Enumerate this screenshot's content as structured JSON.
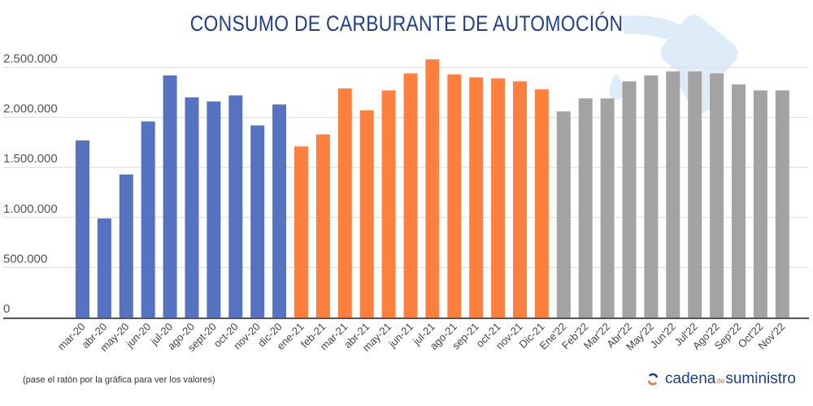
{
  "chart_data": {
    "type": "bar",
    "title": "CONSUMO DE CARBURANTE DE AUTOMOCIÓN",
    "xlabel": "",
    "ylabel": "",
    "ylim": [
      0,
      2500000
    ],
    "yticks": [
      0,
      500000,
      1000000,
      1500000,
      2000000,
      2500000
    ],
    "ytick_labels": [
      "0",
      "500.000",
      "1.000.000",
      "1.500.000",
      "2.000.000",
      "2.500.000"
    ],
    "grid": true,
    "categories": [
      "mar-20",
      "abr-20",
      "may-20",
      "jun-20",
      "jul-20",
      "ago-20",
      "sept-20",
      "oct-20",
      "nov-20",
      "dic-20",
      "ene-21",
      "feb-21",
      "mar-21",
      "abr-21",
      "may-21",
      "jun-21",
      "jul-21",
      "ago-21",
      "sep-21",
      "oct-21",
      "nov-21",
      "Dic-21",
      "Ene'22",
      "Feb'22",
      "Mar'22",
      "Abr'22",
      "May'22",
      "Jun'22",
      "Jul'22",
      "Ago'22",
      "Sep'22",
      "Oct'22",
      "Nov'22"
    ],
    "values": [
      1770000,
      990000,
      1430000,
      1960000,
      2420000,
      2200000,
      2160000,
      2220000,
      1920000,
      2130000,
      1710000,
      1830000,
      2290000,
      2070000,
      2270000,
      2440000,
      2580000,
      2430000,
      2400000,
      2390000,
      2360000,
      2280000,
      2060000,
      2190000,
      2190000,
      2360000,
      2420000,
      2460000,
      2460000,
      2440000,
      2330000,
      2270000,
      2270000
    ],
    "year_colors": {
      "2020": "#5673c1",
      "2021": "#ff7f3e",
      "2022": "#a3a3a3"
    }
  },
  "footer": {
    "note": "(pase el ratón por la gráfica para ver los valores)",
    "logo_part1": "cadena",
    "logo_part2": "de",
    "logo_part3": "suministro"
  },
  "watermark_icon": "fuel-nozzle-icon"
}
